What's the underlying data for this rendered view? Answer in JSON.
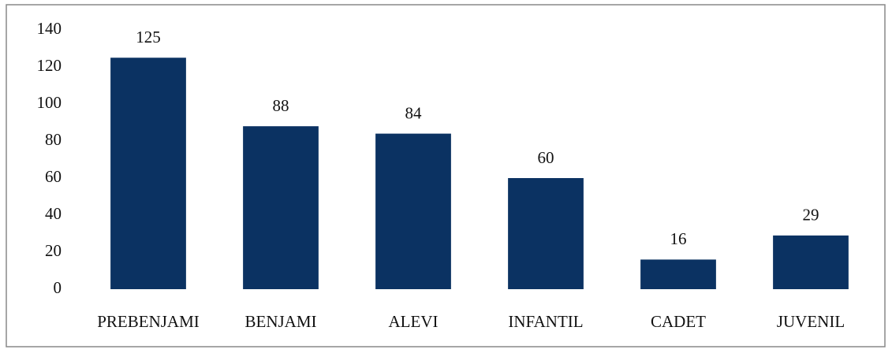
{
  "chart_data": {
    "type": "bar",
    "categories": [
      "PREBENJAMI",
      "BENJAMI",
      "ALEVI",
      "INFANTIL",
      "CADET",
      "JUVENIL"
    ],
    "values": [
      125,
      88,
      84,
      60,
      16,
      29
    ],
    "color": "#0b3262",
    "ylim": [
      0,
      140
    ],
    "yticks": [
      0,
      20,
      40,
      60,
      80,
      100,
      120,
      140
    ],
    "grid": false
  }
}
